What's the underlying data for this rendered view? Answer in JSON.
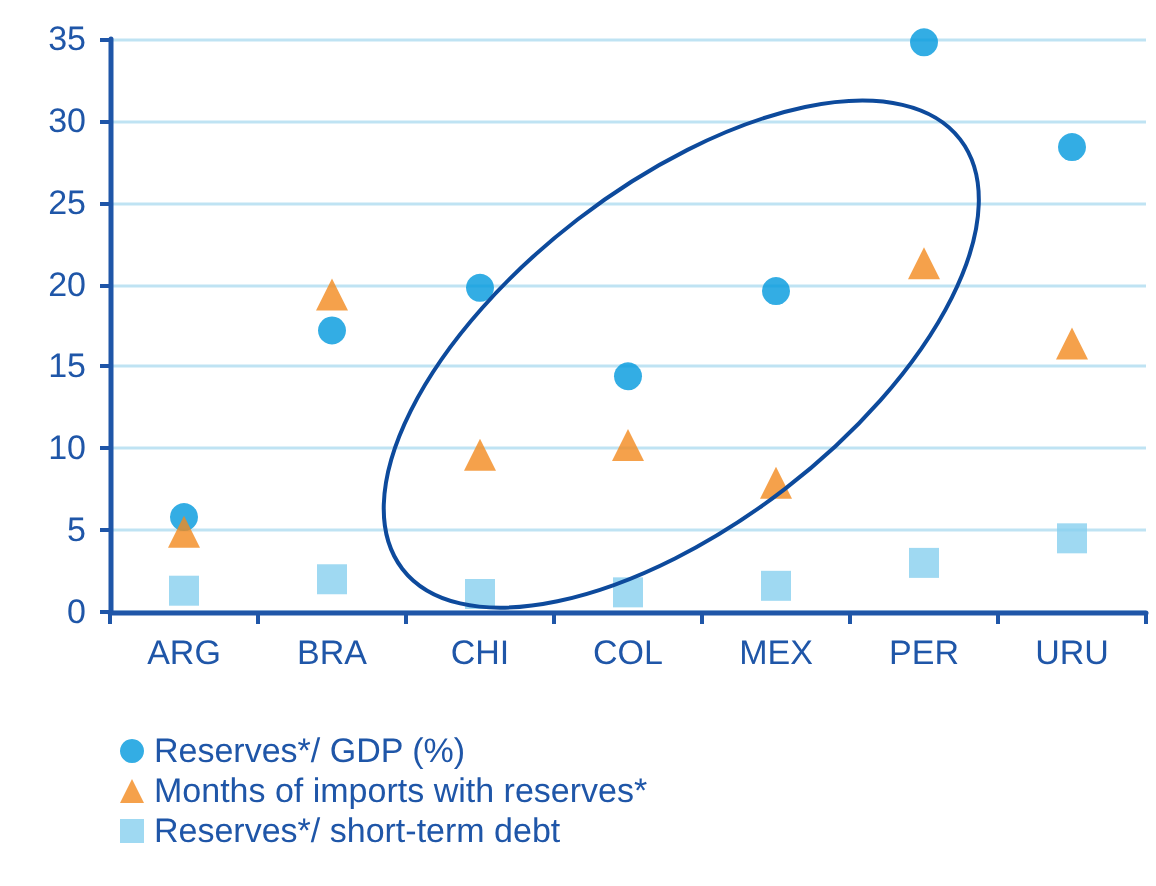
{
  "chart_data": {
    "type": "scatter",
    "categories": [
      "ARG",
      "BRA",
      "CHI",
      "COL",
      "MEX",
      "PER",
      "URU"
    ],
    "series": [
      {
        "name": "Reserves*/ GDP (%)",
        "color": "#0099dd",
        "marker": "circle",
        "values": [
          5.8,
          17.2,
          19.8,
          14.4,
          19.6,
          34.8,
          28.4
        ]
      },
      {
        "name": "Months of imports with reserves*",
        "color": "#f28a1e",
        "marker": "triangle",
        "values": [
          4.9,
          19.4,
          9.6,
          10.2,
          7.9,
          21.3,
          16.4
        ]
      },
      {
        "name": "Reserves*/ short-term debt",
        "color": "#87cfef",
        "marker": "square",
        "values": [
          1.3,
          2.0,
          1.1,
          1.2,
          1.6,
          3.0,
          4.5
        ]
      }
    ],
    "ylim": [
      0,
      35
    ],
    "yticks": [
      0,
      5,
      10,
      15,
      20,
      25,
      30,
      35
    ],
    "grid": "y",
    "legend": "bottom left"
  }
}
